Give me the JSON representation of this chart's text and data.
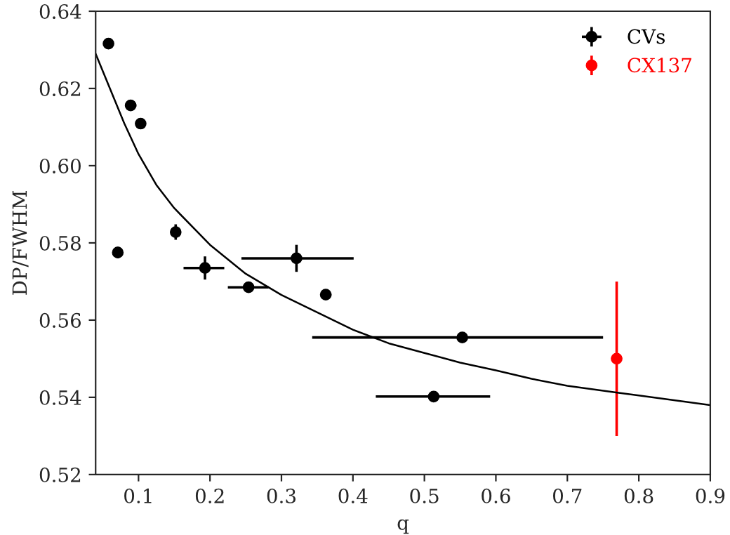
{
  "chart_data": {
    "type": "scatter",
    "xlabel": "q",
    "ylabel": "DP/FWHM",
    "xlim": [
      0.04,
      0.9
    ],
    "ylim": [
      0.52,
      0.64
    ],
    "xticks": [
      0.1,
      0.2,
      0.3,
      0.4,
      0.5,
      0.6,
      0.7,
      0.8,
      0.9
    ],
    "yticks": [
      {
        "value": 0.52,
        "label": "0.52"
      },
      {
        "value": 0.54,
        "label": "0.54"
      },
      {
        "value": 0.56,
        "label": "0.56"
      },
      {
        "value": 0.58,
        "label": "0.58"
      },
      {
        "value": 0.6,
        "label": "0.60"
      },
      {
        "value": 0.62,
        "label": "0.62"
      },
      {
        "value": 0.64,
        "label": "0.64"
      }
    ],
    "grid": false,
    "legend": "top right",
    "marker": "circle",
    "series": [
      {
        "name": "CVs",
        "color": "#000000",
        "x": [
          0.058,
          0.071,
          0.089,
          0.103,
          0.152,
          0.193,
          0.254,
          0.321,
          0.362,
          0.553,
          0.513
        ],
        "values": [
          0.6316,
          0.5775,
          0.6156,
          0.6109,
          0.5828,
          0.5735,
          0.5685,
          0.576,
          0.5666,
          0.5555,
          0.5402
        ],
        "errors": [
          null,
          0.0015,
          null,
          null,
          0.002,
          0.003,
          null,
          0.0035,
          null,
          null,
          null
        ],
        "xerrors": [
          null,
          null,
          0.008,
          null,
          0.007,
          [
            0.163,
            0.22
          ],
          [
            0.225,
            0.282
          ],
          [
            0.244,
            0.401
          ],
          0.008,
          [
            0.343,
            0.75
          ],
          [
            0.432,
            0.592
          ]
        ]
      },
      {
        "name": "CX137",
        "color": "#ff0000",
        "x": [
          0.769
        ],
        "values": [
          0.55
        ],
        "errors": [
          0.02
        ]
      },
      {
        "type": "line",
        "color": "#000000",
        "line_style": "solid",
        "marker": "none",
        "x": [
          0.04,
          0.06,
          0.08,
          0.1,
          0.125,
          0.15,
          0.2,
          0.25,
          0.3,
          0.35,
          0.4,
          0.45,
          0.5,
          0.55,
          0.6,
          0.65,
          0.7,
          0.77,
          0.8,
          0.9
        ],
        "values": [
          0.629,
          0.62,
          0.611,
          0.603,
          0.595,
          0.589,
          0.5795,
          0.572,
          0.5665,
          0.562,
          0.5575,
          0.554,
          0.5515,
          0.549,
          0.547,
          0.5448,
          0.543,
          0.5412,
          0.5405,
          0.538
        ]
      }
    ]
  }
}
